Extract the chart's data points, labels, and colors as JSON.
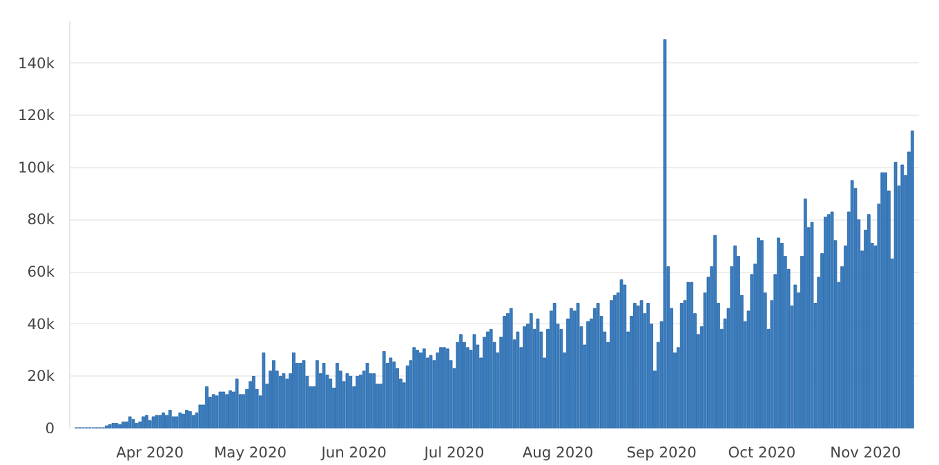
{
  "chart_data": {
    "type": "bar",
    "color": "#3a7dc0",
    "x": [
      "2020-03-10",
      "2020-03-11",
      "2020-03-12",
      "2020-03-13",
      "2020-03-14",
      "2020-03-15",
      "2020-03-16",
      "2020-03-17",
      "2020-03-18",
      "2020-03-19",
      "2020-03-20",
      "2020-03-21",
      "2020-03-22",
      "2020-03-23",
      "2020-03-24",
      "2020-03-25",
      "2020-03-26",
      "2020-03-27",
      "2020-03-28",
      "2020-03-29",
      "2020-03-30",
      "2020-03-31",
      "2020-04-01",
      "2020-04-02",
      "2020-04-03",
      "2020-04-04",
      "2020-04-05",
      "2020-04-06",
      "2020-04-07",
      "2020-04-08",
      "2020-04-09",
      "2020-04-10",
      "2020-04-11",
      "2020-04-12",
      "2020-04-13",
      "2020-04-14",
      "2020-04-15",
      "2020-04-16",
      "2020-04-17",
      "2020-04-18",
      "2020-04-19",
      "2020-04-20",
      "2020-04-21",
      "2020-04-22",
      "2020-04-23",
      "2020-04-24",
      "2020-04-25",
      "2020-04-26",
      "2020-04-27",
      "2020-04-28",
      "2020-04-29",
      "2020-04-30",
      "2020-05-01",
      "2020-05-02",
      "2020-05-03",
      "2020-05-04",
      "2020-05-05",
      "2020-05-06",
      "2020-05-07",
      "2020-05-08",
      "2020-05-09",
      "2020-05-10",
      "2020-05-11",
      "2020-05-12",
      "2020-05-13",
      "2020-05-14",
      "2020-05-15",
      "2020-05-16",
      "2020-05-17",
      "2020-05-18",
      "2020-05-19",
      "2020-05-20",
      "2020-05-21",
      "2020-05-22",
      "2020-05-23",
      "2020-05-24",
      "2020-05-25",
      "2020-05-26",
      "2020-05-27",
      "2020-05-28",
      "2020-05-29",
      "2020-05-30",
      "2020-05-31",
      "2020-06-01",
      "2020-06-02",
      "2020-06-03",
      "2020-06-04",
      "2020-06-05",
      "2020-06-06",
      "2020-06-07",
      "2020-06-08",
      "2020-06-09",
      "2020-06-10",
      "2020-06-11",
      "2020-06-12",
      "2020-06-13",
      "2020-06-14",
      "2020-06-15",
      "2020-06-16",
      "2020-06-17",
      "2020-06-18",
      "2020-06-19",
      "2020-06-20",
      "2020-06-21",
      "2020-06-22",
      "2020-06-23",
      "2020-06-24",
      "2020-06-25",
      "2020-06-26",
      "2020-06-27",
      "2020-06-28",
      "2020-06-29",
      "2020-06-30",
      "2020-07-01",
      "2020-07-02",
      "2020-07-03",
      "2020-07-04",
      "2020-07-05",
      "2020-07-06",
      "2020-07-07",
      "2020-07-08",
      "2020-07-09",
      "2020-07-10",
      "2020-07-11",
      "2020-07-12",
      "2020-07-13",
      "2020-07-14",
      "2020-07-15",
      "2020-07-16",
      "2020-07-17",
      "2020-07-18",
      "2020-07-19",
      "2020-07-20",
      "2020-07-21",
      "2020-07-22",
      "2020-07-23",
      "2020-07-24",
      "2020-07-25",
      "2020-07-26",
      "2020-07-27",
      "2020-07-28",
      "2020-07-29",
      "2020-07-30",
      "2020-07-31",
      "2020-08-01",
      "2020-08-02",
      "2020-08-03",
      "2020-08-04",
      "2020-08-05",
      "2020-08-06",
      "2020-08-07",
      "2020-08-08",
      "2020-08-09",
      "2020-08-10",
      "2020-08-11",
      "2020-08-12",
      "2020-08-13",
      "2020-08-14",
      "2020-08-15",
      "2020-08-16",
      "2020-08-17",
      "2020-08-18",
      "2020-08-19",
      "2020-08-20",
      "2020-08-21",
      "2020-08-22",
      "2020-08-23",
      "2020-08-24",
      "2020-08-25",
      "2020-08-26",
      "2020-08-27",
      "2020-08-28",
      "2020-08-29",
      "2020-08-30",
      "2020-08-31",
      "2020-09-01",
      "2020-09-02",
      "2020-09-03",
      "2020-09-04",
      "2020-09-05",
      "2020-09-06",
      "2020-09-07",
      "2020-09-08",
      "2020-09-09",
      "2020-09-10",
      "2020-09-11",
      "2020-09-12",
      "2020-09-13",
      "2020-09-14",
      "2020-09-15",
      "2020-09-16",
      "2020-09-17",
      "2020-09-18",
      "2020-09-19",
      "2020-09-20",
      "2020-09-21",
      "2020-09-22",
      "2020-09-23",
      "2020-09-24",
      "2020-09-25",
      "2020-09-26",
      "2020-09-27",
      "2020-09-28",
      "2020-09-29",
      "2020-09-30",
      "2020-10-01",
      "2020-10-02",
      "2020-10-03",
      "2020-10-04",
      "2020-10-05",
      "2020-10-06",
      "2020-10-07",
      "2020-10-08",
      "2020-10-09",
      "2020-10-10",
      "2020-10-11",
      "2020-10-12",
      "2020-10-13",
      "2020-10-14",
      "2020-10-15",
      "2020-10-16",
      "2020-10-17",
      "2020-10-18",
      "2020-10-19",
      "2020-10-20",
      "2020-10-21",
      "2020-10-22",
      "2020-10-23",
      "2020-10-24",
      "2020-10-25",
      "2020-10-26",
      "2020-10-27",
      "2020-10-28",
      "2020-10-29",
      "2020-10-30",
      "2020-10-31",
      "2020-11-01",
      "2020-11-02",
      "2020-11-03",
      "2020-11-04",
      "2020-11-05",
      "2020-11-06",
      "2020-11-07",
      "2020-11-08",
      "2020-11-09",
      "2020-11-10",
      "2020-11-11",
      "2020-11-12",
      "2020-11-13",
      "2020-11-14",
      "2020-11-15"
    ],
    "values": [
      300,
      300,
      300,
      300,
      300,
      300,
      300,
      300,
      300,
      1000,
      1500,
      2000,
      2000,
      1500,
      2500,
      2500,
      4500,
      3500,
      2000,
      2500,
      4500,
      5000,
      3000,
      4500,
      5000,
      5000,
      6000,
      5000,
      7000,
      4500,
      4500,
      6000,
      5500,
      7000,
      6500,
      5000,
      6000,
      9000,
      9000,
      16000,
      12000,
      13000,
      12500,
      14000,
      14000,
      13000,
      14500,
      14000,
      19000,
      13000,
      13000,
      15000,
      18000,
      20000,
      15000,
      12500,
      29000,
      17000,
      22000,
      26000,
      22000,
      20000,
      21000,
      19000,
      21000,
      29000,
      25000,
      25000,
      26000,
      20000,
      16000,
      16000,
      26000,
      21000,
      25000,
      20500,
      19000,
      15500,
      25000,
      22000,
      18000,
      21000,
      20000,
      16000,
      20000,
      20500,
      22000,
      25000,
      21000,
      21000,
      17000,
      17000,
      29500,
      25000,
      27000,
      25500,
      23000,
      19000,
      17500,
      24000,
      26000,
      31000,
      30000,
      29000,
      30500,
      27000,
      28000,
      26000,
      29000,
      31000,
      31000,
      30500,
      26000,
      23000,
      33000,
      36000,
      33000,
      31000,
      30000,
      36000,
      32000,
      27000,
      35000,
      37000,
      38000,
      33000,
      29000,
      35000,
      43000,
      44000,
      46000,
      34000,
      37000,
      31000,
      39000,
      40000,
      44000,
      38000,
      42000,
      37000,
      27000,
      38000,
      45000,
      48000,
      40000,
      38000,
      29000,
      42000,
      46000,
      45000,
      48000,
      39000,
      32000,
      41000,
      42000,
      46000,
      48000,
      43000,
      37000,
      33000,
      49000,
      51000,
      52000,
      57000,
      55000,
      37000,
      43000,
      48000,
      47000,
      49000,
      44000,
      48000,
      40000,
      22000,
      33000,
      41000,
      149000,
      62000,
      46000,
      29000,
      31000,
      48000,
      49000,
      56000,
      56000,
      44000,
      36000,
      39000,
      52000,
      58000,
      62000,
      74000,
      48000,
      38000,
      42000,
      46000,
      62000,
      70000,
      66000,
      51000,
      41000,
      45000,
      59000,
      63000,
      73000,
      72000,
      52000,
      38000,
      49000,
      59000,
      73000,
      71000,
      66000,
      61000,
      47000,
      55000,
      52000,
      66000,
      88000,
      77000,
      79000,
      48000,
      58000,
      67000,
      81000,
      82000,
      83000,
      72000,
      56000,
      62000,
      70000,
      83000,
      95000,
      92000,
      80000,
      68000,
      76000,
      82000,
      71000,
      70000,
      86000,
      98000,
      98000,
      91000,
      65000,
      102000,
      93000,
      101000,
      97000,
      106000,
      114000
    ],
    "xlim": [
      "2020-03-08",
      "2020-11-17"
    ],
    "xticks": [
      {
        "value": "2020-04-01",
        "label": "Apr 2020"
      },
      {
        "value": "2020-05-01",
        "label": "May 2020"
      },
      {
        "value": "2020-06-01",
        "label": "Jun 2020"
      },
      {
        "value": "2020-07-01",
        "label": "Jul 2020"
      },
      {
        "value": "2020-08-01",
        "label": "Aug 2020"
      },
      {
        "value": "2020-09-01",
        "label": "Sep 2020"
      },
      {
        "value": "2020-10-01",
        "label": "Oct 2020"
      },
      {
        "value": "2020-11-01",
        "label": "Nov 2020"
      }
    ],
    "ylim": [
      0,
      156000
    ],
    "yticks": [
      0,
      {
        "value": 20000,
        "label": "20k"
      },
      {
        "value": 40000,
        "label": "40k"
      },
      {
        "value": 60000,
        "label": "60k"
      },
      {
        "value": 80000,
        "label": "80k"
      },
      {
        "value": 100000,
        "label": "100k"
      },
      {
        "value": 120000,
        "label": "120k"
      },
      {
        "value": 140000,
        "label": "140k"
      }
    ],
    "grid": "y"
  }
}
